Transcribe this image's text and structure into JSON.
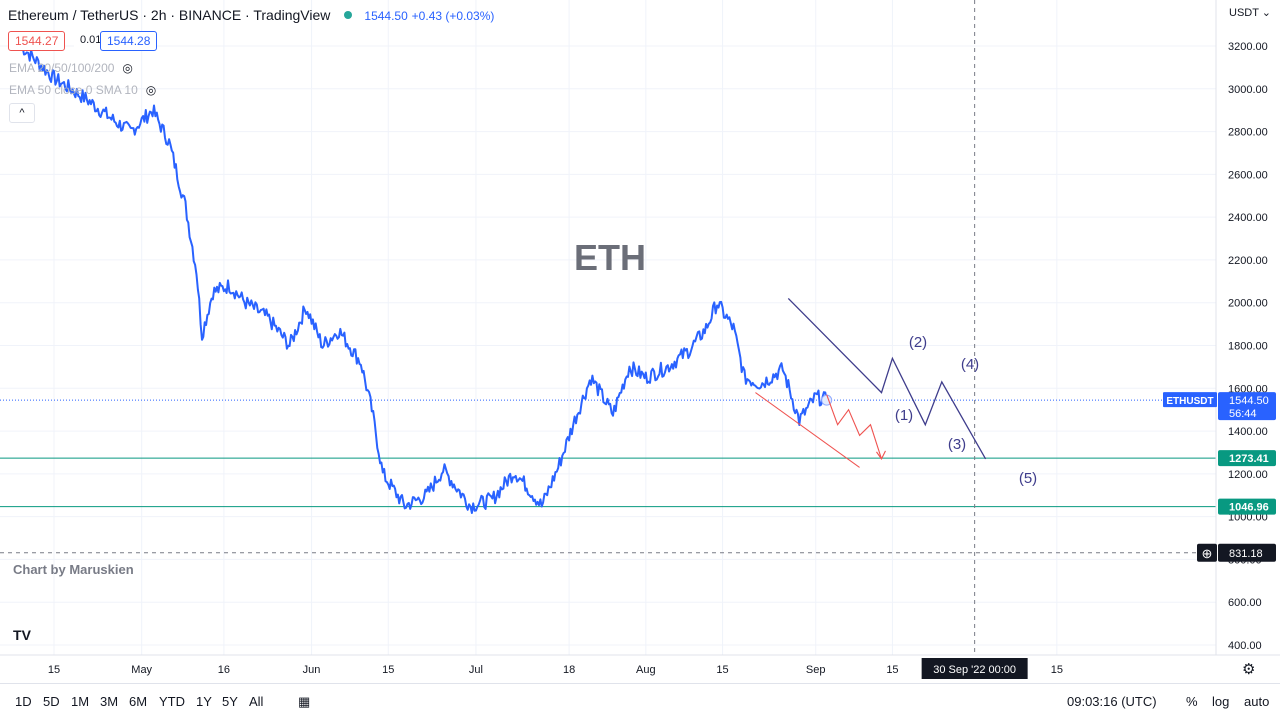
{
  "header": {
    "symbol": "Ethereum / TetherUS · 2h · BINANCE · TradingView",
    "last": "1544.50",
    "change": "+0.43 (+0.03%)",
    "sell_price": "1544.27",
    "spread": "0.01",
    "buy_price": "1544.28",
    "indicator1": "EMA 20/50/100/200",
    "indicator2": "EMA 50 close 0 SMA 10"
  },
  "watermark": "ETH",
  "credit": "Chart by Maruskien",
  "axis": {
    "currency": "USDT",
    "yticks": [
      "3200.00",
      "3000.00",
      "2800.00",
      "2600.00",
      "2400.00",
      "2200.00",
      "2000.00",
      "1800.00",
      "1600.00",
      "1400.00",
      "1200.00",
      "1000.00",
      "800.00",
      "600.00",
      "400.00"
    ],
    "xticks": [
      "15",
      "May",
      "16",
      "Jun",
      "15",
      "Jul",
      "18",
      "Aug",
      "15",
      "Sep",
      "15",
      "15"
    ],
    "cursor_date": "30 Sep '22   00:00"
  },
  "price_labels": {
    "symbol_tag": "ETHUSDT",
    "last": "1544.50",
    "countdown": "56:44",
    "level1": "1273.41",
    "level2": "1046.96",
    "crosshair": "831.18"
  },
  "waves": [
    "(1)",
    "(2)",
    "(3)",
    "(4)",
    "(5)"
  ],
  "toolbar": {
    "ranges": [
      "1D",
      "5D",
      "1M",
      "3M",
      "6M",
      "YTD",
      "1Y",
      "5Y",
      "All"
    ],
    "time": "09:03:16 (UTC)",
    "percent": "%",
    "log": "log",
    "auto": "auto"
  },
  "colors": {
    "price_line": "#2962ff",
    "level_lines": "#089981",
    "wave_purple": "#3f3d8c",
    "wave_red": "#ef5350"
  },
  "chart_data": {
    "type": "line",
    "title": "Ethereum / TetherUS · 2h · BINANCE · TradingView",
    "xlabel": "",
    "ylabel": "",
    "ylim": [
      400,
      3200
    ],
    "series": [
      {
        "name": "ETHUSDT",
        "x": [
          "2022-04-09",
          "2022-04-15",
          "2022-04-21",
          "2022-04-26",
          "2022-04-29",
          "2022-05-03",
          "2022-05-06",
          "2022-05-09",
          "2022-05-11",
          "2022-05-12",
          "2022-05-14",
          "2022-05-17",
          "2022-05-20",
          "2022-05-24",
          "2022-05-28",
          "2022-05-31",
          "2022-06-03",
          "2022-06-06",
          "2022-06-10",
          "2022-06-12",
          "2022-06-14",
          "2022-06-18",
          "2022-06-22",
          "2022-06-25",
          "2022-06-30",
          "2022-07-04",
          "2022-07-08",
          "2022-07-10",
          "2022-07-13",
          "2022-07-16",
          "2022-07-19",
          "2022-07-22",
          "2022-07-26",
          "2022-07-29",
          "2022-08-01",
          "2022-08-05",
          "2022-08-09",
          "2022-08-12",
          "2022-08-14",
          "2022-08-17",
          "2022-08-19",
          "2022-08-22",
          "2022-08-26",
          "2022-08-29",
          "2022-09-01",
          "2022-09-03"
        ],
        "values": [
          3200,
          3050,
          2950,
          2850,
          2800,
          2900,
          2750,
          2450,
          2150,
          1850,
          2050,
          2080,
          2000,
          1930,
          1800,
          1980,
          1800,
          1870,
          1720,
          1500,
          1200,
          1050,
          1100,
          1220,
          1050,
          1080,
          1210,
          1150,
          1050,
          1230,
          1450,
          1650,
          1480,
          1700,
          1650,
          1700,
          1780,
          1880,
          2000,
          1880,
          1650,
          1620,
          1690,
          1450,
          1560,
          1544.5
        ]
      }
    ],
    "levels": [
      1273.41,
      1046.96
    ],
    "projection": {
      "purple_waves": [
        {
          "date": "2022-08-27",
          "price": 2020
        },
        {
          "date": "2022-09-13",
          "price": 1580
        },
        {
          "date": "2022-09-15",
          "price": 1740
        },
        {
          "date": "2022-09-21",
          "price": 1430
        },
        {
          "date": "2022-09-24",
          "price": 1630
        },
        {
          "date": "2022-10-02",
          "price": 1270
        }
      ],
      "red_path": [
        {
          "date": "2022-09-03",
          "price": 1570
        },
        {
          "date": "2022-09-05",
          "price": 1430
        },
        {
          "date": "2022-09-07",
          "price": 1500
        },
        {
          "date": "2022-09-09",
          "price": 1380
        },
        {
          "date": "2022-09-11",
          "price": 1430
        },
        {
          "date": "2022-09-13",
          "price": 1270
        }
      ],
      "red_channel": [
        {
          "date": "2022-08-21",
          "price": 1580
        },
        {
          "date": "2022-09-09",
          "price": 1230
        }
      ]
    }
  }
}
